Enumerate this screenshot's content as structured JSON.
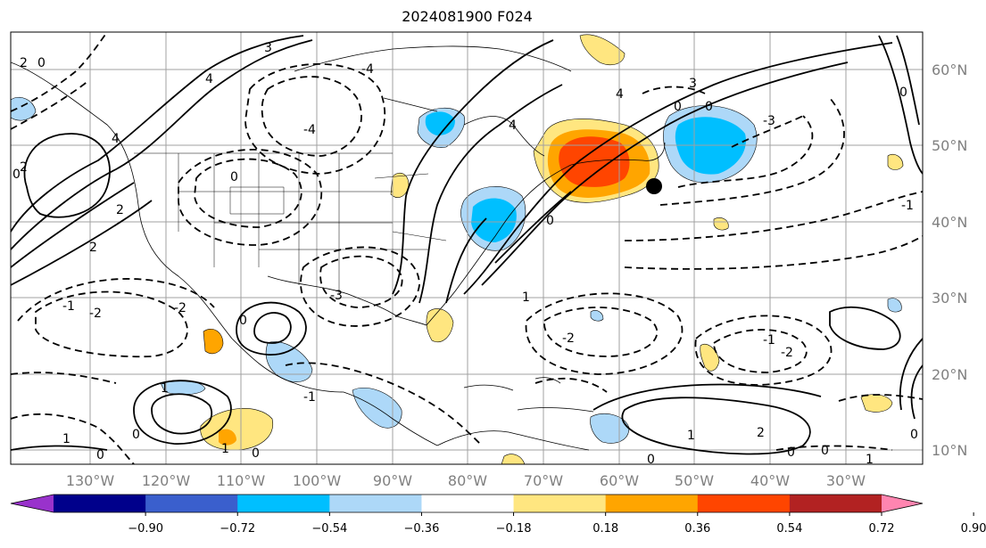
{
  "title": "2024081900 F024",
  "lat_labels": [
    "60°N",
    "50°N",
    "40°N",
    "30°N",
    "20°N",
    "10°N"
  ],
  "lon_labels": [
    "130°W",
    "120°W",
    "110°W",
    "100°W",
    "90°W",
    "80°W",
    "70°W",
    "60°W",
    "50°W",
    "40°W",
    "30°W"
  ],
  "colorbar": {
    "ticks": [
      "−0.90",
      "−0.72",
      "−0.54",
      "−0.36",
      "−0.18",
      "0.18",
      "0.36",
      "0.54",
      "0.72",
      "0.90"
    ],
    "colors": [
      "#9932cc",
      "#00008b",
      "#3a5fcd",
      "#00bfff",
      "#add8f8",
      "#ffffff",
      "#ffe680",
      "#ffa500",
      "#ff4500",
      "#b22222",
      "#ff85b0"
    ]
  },
  "contour_labels": [
    "4",
    "3",
    "2",
    "1",
    "0",
    "-1",
    "-2",
    "-3",
    "-4"
  ],
  "colors": {
    "positive_strong": "#ff4500",
    "positive_mid": "#ffa500",
    "positive_weak": "#ffe680",
    "negative_weak": "#add8f8",
    "negative_mid": "#00bfff"
  }
}
